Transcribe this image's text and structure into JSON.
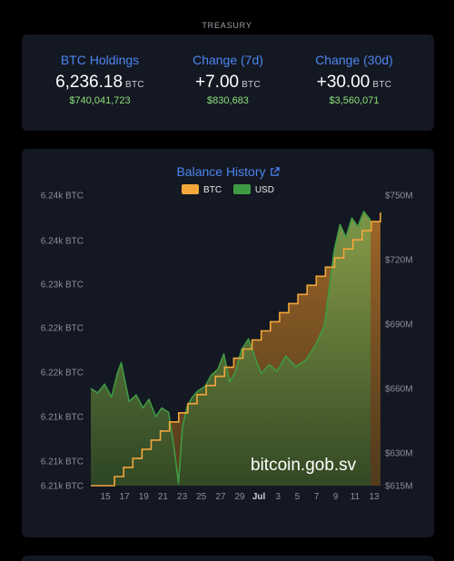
{
  "header": {
    "title": "TREASURY"
  },
  "stats": [
    {
      "label": "BTC Holdings",
      "value": "6,236.18",
      "unit": "BTC",
      "usd": "$740,041,723"
    },
    {
      "label": "Change (7d)",
      "value": "+7.00",
      "unit": "BTC",
      "usd": "$830,683"
    },
    {
      "label": "Change (30d)",
      "value": "+30.00",
      "unit": "BTC",
      "usd": "$3,560,071"
    }
  ],
  "colors": {
    "btc": "#f3a73b",
    "usd": "#3f9a44",
    "accent": "#4a86f0",
    "positive": "#8ee07a"
  },
  "watermark": "bitcoin.gob.sv",
  "chart_data": {
    "type": "area",
    "title": "Balance History",
    "legend": [
      "BTC",
      "USD"
    ],
    "legend_position": "top-center",
    "x_ticks": [
      "15",
      "17",
      "19",
      "21",
      "23",
      "25",
      "27",
      "29",
      "Jul",
      "3",
      "5",
      "7",
      "9",
      "11",
      "13"
    ],
    "y_left_ticks": [
      "6.21k BTC",
      "6.21k BTC",
      "6.21k BTC",
      "6.22k BTC",
      "6.22k BTC",
      "6.23k BTC",
      "6.24k BTC",
      "6.24k BTC"
    ],
    "y_right_ticks": [
      "$615M",
      "$630M",
      "$660M",
      "$690M",
      "$720M",
      "$750M"
    ],
    "y_left_range": [
      6206,
      6238
    ],
    "y_right_range": [
      615,
      750
    ],
    "series": [
      {
        "name": "BTC",
        "axis": "left",
        "step_values": [
          6206,
          6207,
          6208,
          6209,
          6210,
          6211,
          6212,
          6213,
          6214,
          6215,
          6216,
          6217,
          6218,
          6219,
          6220,
          6221,
          6222,
          6223,
          6224,
          6225,
          6226,
          6227,
          6228,
          6229,
          6230,
          6231,
          6232,
          6233,
          6234,
          6235,
          6236
        ]
      },
      {
        "name": "USD",
        "axis": "right",
        "points": [
          [
            13.9,
            660
          ],
          [
            14.6,
            658
          ],
          [
            15.3,
            662
          ],
          [
            16.0,
            656
          ],
          [
            16.6,
            667
          ],
          [
            17.0,
            672
          ],
          [
            17.3,
            665
          ],
          [
            17.8,
            654
          ],
          [
            18.5,
            657
          ],
          [
            19.2,
            651
          ],
          [
            19.8,
            655
          ],
          [
            20.5,
            647
          ],
          [
            21.1,
            651
          ],
          [
            21.8,
            649
          ],
          [
            22.4,
            631
          ],
          [
            22.8,
            616
          ],
          [
            23.2,
            642
          ],
          [
            23.7,
            652
          ],
          [
            24.2,
            656
          ],
          [
            24.8,
            659
          ],
          [
            25.5,
            661
          ],
          [
            26.1,
            666
          ],
          [
            26.8,
            669
          ],
          [
            27.4,
            676
          ],
          [
            28.0,
            663
          ],
          [
            28.6,
            668
          ],
          [
            29.2,
            678
          ],
          [
            29.9,
            683
          ],
          [
            30.6,
            674
          ],
          [
            31.2,
            667
          ],
          [
            32.0,
            671
          ],
          [
            32.8,
            668
          ],
          [
            33.7,
            675
          ],
          [
            34.7,
            670
          ],
          [
            35.7,
            673
          ],
          [
            36.7,
            680
          ],
          [
            37.6,
            689
          ],
          [
            38.6,
            724
          ],
          [
            39.2,
            736
          ],
          [
            39.8,
            730
          ],
          [
            40.4,
            739
          ],
          [
            41.0,
            735
          ],
          [
            41.6,
            742
          ],
          [
            42.3,
            738
          ]
        ]
      }
    ]
  }
}
